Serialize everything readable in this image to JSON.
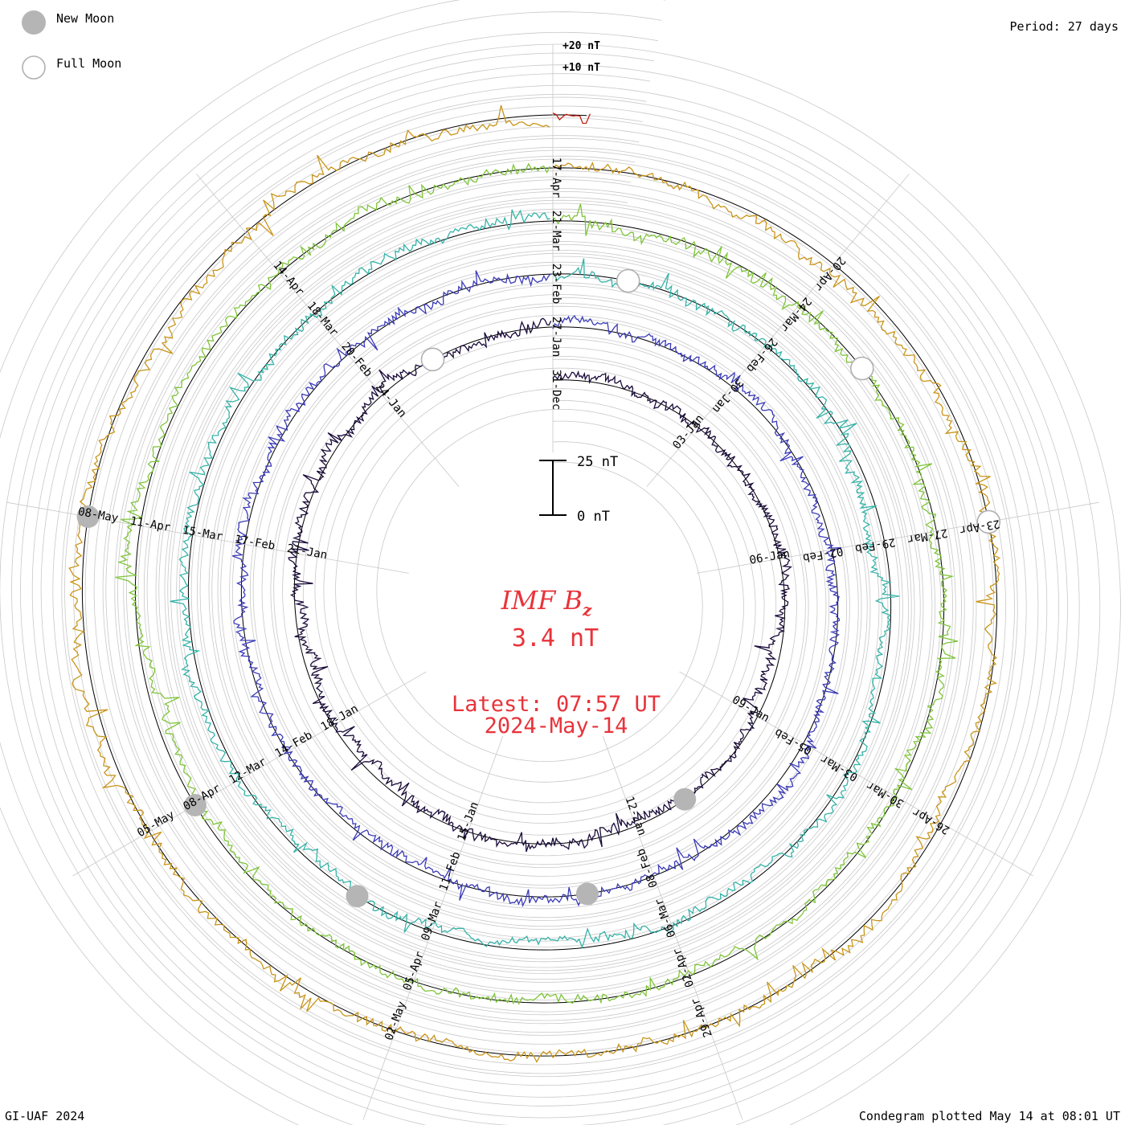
{
  "header": {
    "new_moon_label": "New Moon",
    "full_moon_label": "Full Moon",
    "period_label": "Period: 27 days"
  },
  "scale_labels": {
    "plus20": "+20 nT",
    "plus10": "+10 nT",
    "bar_top": "25 nT",
    "bar_bottom": "0 nT"
  },
  "center": {
    "quantity": "IMF B",
    "subscript": "z",
    "value": "3.4 nT",
    "latest": "Latest: 07:57 UT",
    "date": "2024-May-14"
  },
  "footer": {
    "credit": "GI-UAF 2024",
    "plotted": "Condegram plotted May 14 at 08:01 UT"
  },
  "chart_data": {
    "type": "line",
    "title": "IMF B",
    "subscript": "z",
    "period_days": 27,
    "latest_value_nT": 3.4,
    "scale": {
      "ring_step_nT": 10,
      "bar_nT": 25
    },
    "revolutions": [
      {
        "index": 1,
        "start": "2023-12-31",
        "color": "#1a0b3a",
        "labels": [
          "31-Dec",
          "03-Jan",
          "06-Jan",
          "09-Jan",
          "12-Jan",
          "15-Jan",
          "18-Jan",
          "21-Jan",
          "24-Jan"
        ]
      },
      {
        "index": 2,
        "start": "2024-01-27",
        "color": "#3b3bb8",
        "labels": [
          "27-Jan",
          "30-Jan",
          "02-Feb",
          "05-Feb",
          "08-Feb",
          "11-Feb",
          "14-Feb",
          "17-Feb",
          "20-Feb"
        ]
      },
      {
        "index": 3,
        "start": "2024-02-23",
        "color": "#35b3a8",
        "labels": [
          "23-Feb",
          "26-Feb",
          "29-Feb",
          "03-Mar",
          "06-Mar",
          "09-Mar",
          "12-Mar",
          "15-Mar",
          "18-Mar"
        ]
      },
      {
        "index": 4,
        "start": "2024-03-21",
        "color": "#7fc43a",
        "labels": [
          "21-Mar",
          "24-Mar",
          "27-Mar",
          "30-Mar",
          "02-Apr",
          "05-Apr",
          "08-Apr",
          "11-Apr",
          "14-Apr"
        ]
      },
      {
        "index": 5,
        "start": "2024-04-17",
        "color": "#c9951a",
        "labels": [
          "17-Apr",
          "20-Apr",
          "23-Apr",
          "26-Apr",
          "29-Apr",
          "02-May",
          "05-May",
          "08-May"
        ]
      },
      {
        "index": 6,
        "start": "2024-05-14",
        "color": "#c21d12",
        "labels": []
      }
    ],
    "moon_phases": [
      {
        "type": "new",
        "date": "2024-01-11"
      },
      {
        "type": "full",
        "date": "2024-01-25"
      },
      {
        "type": "new",
        "date": "2024-02-09"
      },
      {
        "type": "full",
        "date": "2024-02-24"
      },
      {
        "type": "new",
        "date": "2024-03-10"
      },
      {
        "type": "full",
        "date": "2024-03-25"
      },
      {
        "type": "new",
        "date": "2024-04-08"
      },
      {
        "type": "full",
        "date": "2024-04-23"
      },
      {
        "type": "new",
        "date": "2024-05-08"
      }
    ]
  }
}
